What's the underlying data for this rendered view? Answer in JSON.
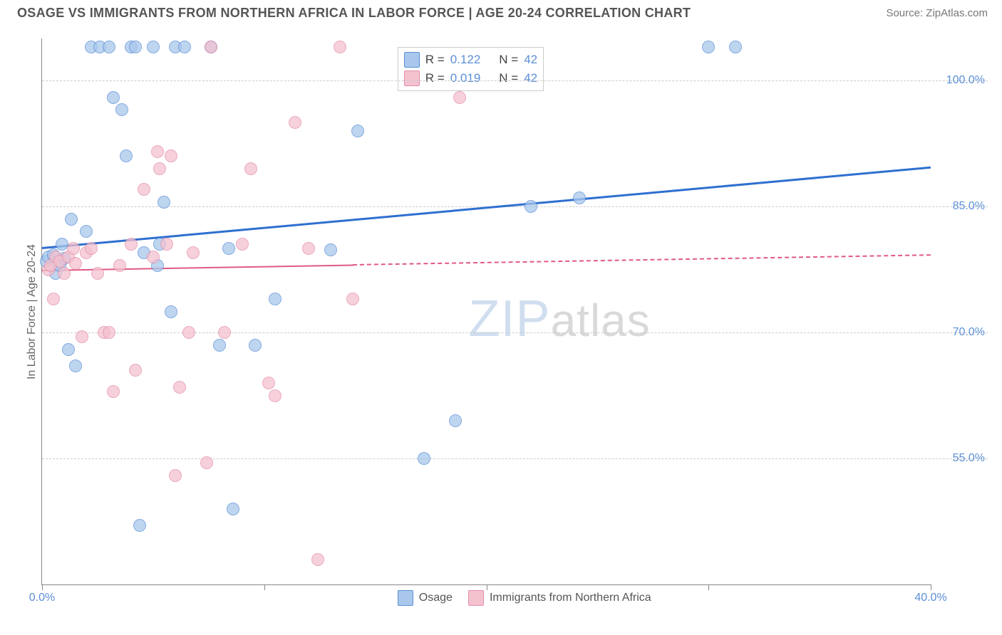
{
  "header": {
    "title": "OSAGE VS IMMIGRANTS FROM NORTHERN AFRICA IN LABOR FORCE | AGE 20-24 CORRELATION CHART",
    "source": "Source: ZipAtlas.com"
  },
  "watermark": {
    "z": "ZIP",
    "rest": "atlas"
  },
  "chart": {
    "type": "scatter-correlation",
    "y_label": "In Labor Force | Age 20-24",
    "background_color": "#ffffff",
    "grid_color": "#cccccc",
    "axis_color": "#888888",
    "tick_label_color": "#5b8fd6",
    "tick_fontsize": 16,
    "label_fontsize": 16,
    "xlim": [
      0,
      40
    ],
    "ylim": [
      40,
      105
    ],
    "y_ticks": [
      55,
      70,
      85,
      100
    ],
    "y_tick_labels": [
      "55.0%",
      "70.0%",
      "85.0%",
      "100.0%"
    ],
    "x_ticks": [
      0,
      10,
      20,
      30,
      40
    ],
    "x_tick_labels": [
      "0.0%",
      "",
      "",
      "",
      "40.0%"
    ],
    "marker_radius": 9,
    "marker_opacity": 0.75,
    "legend_top": {
      "rows": [
        {
          "swatch_fill": "#a9c7ec",
          "swatch_stroke": "#5b8fd6",
          "r_label": "R =",
          "r_value": "0.122",
          "n_label": "N =",
          "n_value": "42"
        },
        {
          "swatch_fill": "#f4c1cf",
          "swatch_stroke": "#e38fa8",
          "r_label": "R =",
          "r_value": "0.019",
          "n_label": "N =",
          "n_value": "42"
        }
      ]
    },
    "legend_bottom": {
      "items": [
        {
          "swatch_fill": "#a9c7ec",
          "swatch_stroke": "#5b8fd6",
          "label": "Osage"
        },
        {
          "swatch_fill": "#f4c1cf",
          "swatch_stroke": "#e38fa8",
          "label": "Immigrants from Northern Africa"
        }
      ]
    },
    "series": [
      {
        "name": "Osage",
        "color_fill": "#a9c7ec",
        "color_stroke": "#5b8fd6",
        "trend": {
          "color": "#2f6fd0",
          "width": 3,
          "y_at_xmin": 80.2,
          "y_at_xmax": 89.8,
          "solid_x_end": 40,
          "dash_after_solid": false
        },
        "points": [
          [
            0.2,
            78.5
          ],
          [
            0.3,
            79.0
          ],
          [
            0.5,
            79.2
          ],
          [
            0.6,
            77.0
          ],
          [
            0.8,
            78.0
          ],
          [
            0.9,
            80.5
          ],
          [
            1.0,
            78.8
          ],
          [
            1.2,
            68.0
          ],
          [
            1.3,
            83.5
          ],
          [
            1.5,
            66.0
          ],
          [
            2.0,
            82.0
          ],
          [
            2.2,
            104.0
          ],
          [
            2.6,
            104.0
          ],
          [
            3.0,
            104.0
          ],
          [
            3.2,
            98.0
          ],
          [
            3.6,
            96.5
          ],
          [
            3.8,
            91.0
          ],
          [
            4.0,
            104.0
          ],
          [
            4.2,
            104.0
          ],
          [
            4.4,
            47.0
          ],
          [
            4.6,
            79.5
          ],
          [
            5.0,
            104.0
          ],
          [
            5.2,
            78.0
          ],
          [
            5.3,
            80.5
          ],
          [
            5.5,
            85.5
          ],
          [
            5.8,
            72.5
          ],
          [
            6.0,
            104.0
          ],
          [
            6.4,
            104.0
          ],
          [
            7.6,
            104.0
          ],
          [
            8.0,
            68.5
          ],
          [
            8.4,
            80.0
          ],
          [
            8.6,
            49.0
          ],
          [
            9.6,
            68.5
          ],
          [
            10.5,
            74.0
          ],
          [
            13.0,
            79.8
          ],
          [
            14.2,
            94.0
          ],
          [
            17.2,
            55.0
          ],
          [
            18.6,
            59.5
          ],
          [
            22.0,
            85.0
          ],
          [
            24.2,
            86.0
          ],
          [
            30.0,
            104.0
          ],
          [
            31.2,
            104.0
          ]
        ]
      },
      {
        "name": "Immigrants from Northern Africa",
        "color_fill": "#f4c1cf",
        "color_stroke": "#e38fa8",
        "trend": {
          "color": "#e05a82",
          "width": 2.5,
          "y_at_xmin": 77.5,
          "y_at_xmax": 79.3,
          "solid_x_end": 14,
          "dash_after_solid": true
        },
        "points": [
          [
            0.3,
            77.5
          ],
          [
            0.4,
            78.0
          ],
          [
            0.5,
            74.0
          ],
          [
            0.6,
            79.0
          ],
          [
            0.8,
            78.5
          ],
          [
            1.0,
            77.0
          ],
          [
            1.2,
            79.0
          ],
          [
            1.4,
            80.0
          ],
          [
            1.5,
            78.2
          ],
          [
            1.8,
            69.5
          ],
          [
            2.0,
            79.5
          ],
          [
            2.2,
            80.0
          ],
          [
            2.5,
            77.0
          ],
          [
            2.8,
            70.0
          ],
          [
            3.0,
            70.0
          ],
          [
            3.2,
            63.0
          ],
          [
            3.5,
            78.0
          ],
          [
            4.0,
            80.5
          ],
          [
            4.2,
            65.5
          ],
          [
            4.6,
            87.0
          ],
          [
            5.0,
            79.0
          ],
          [
            5.2,
            91.5
          ],
          [
            5.3,
            89.5
          ],
          [
            5.6,
            80.5
          ],
          [
            5.8,
            91.0
          ],
          [
            6.0,
            53.0
          ],
          [
            6.2,
            63.5
          ],
          [
            6.6,
            70.0
          ],
          [
            6.8,
            79.5
          ],
          [
            7.4,
            54.5
          ],
          [
            7.6,
            104.0
          ],
          [
            8.2,
            70.0
          ],
          [
            9.0,
            80.5
          ],
          [
            9.4,
            89.5
          ],
          [
            10.2,
            64.0
          ],
          [
            10.5,
            62.5
          ],
          [
            11.4,
            95.0
          ],
          [
            12.0,
            80.0
          ],
          [
            12.4,
            43.0
          ],
          [
            13.4,
            104.0
          ],
          [
            14.0,
            74.0
          ],
          [
            18.8,
            98.0
          ]
        ]
      }
    ]
  }
}
